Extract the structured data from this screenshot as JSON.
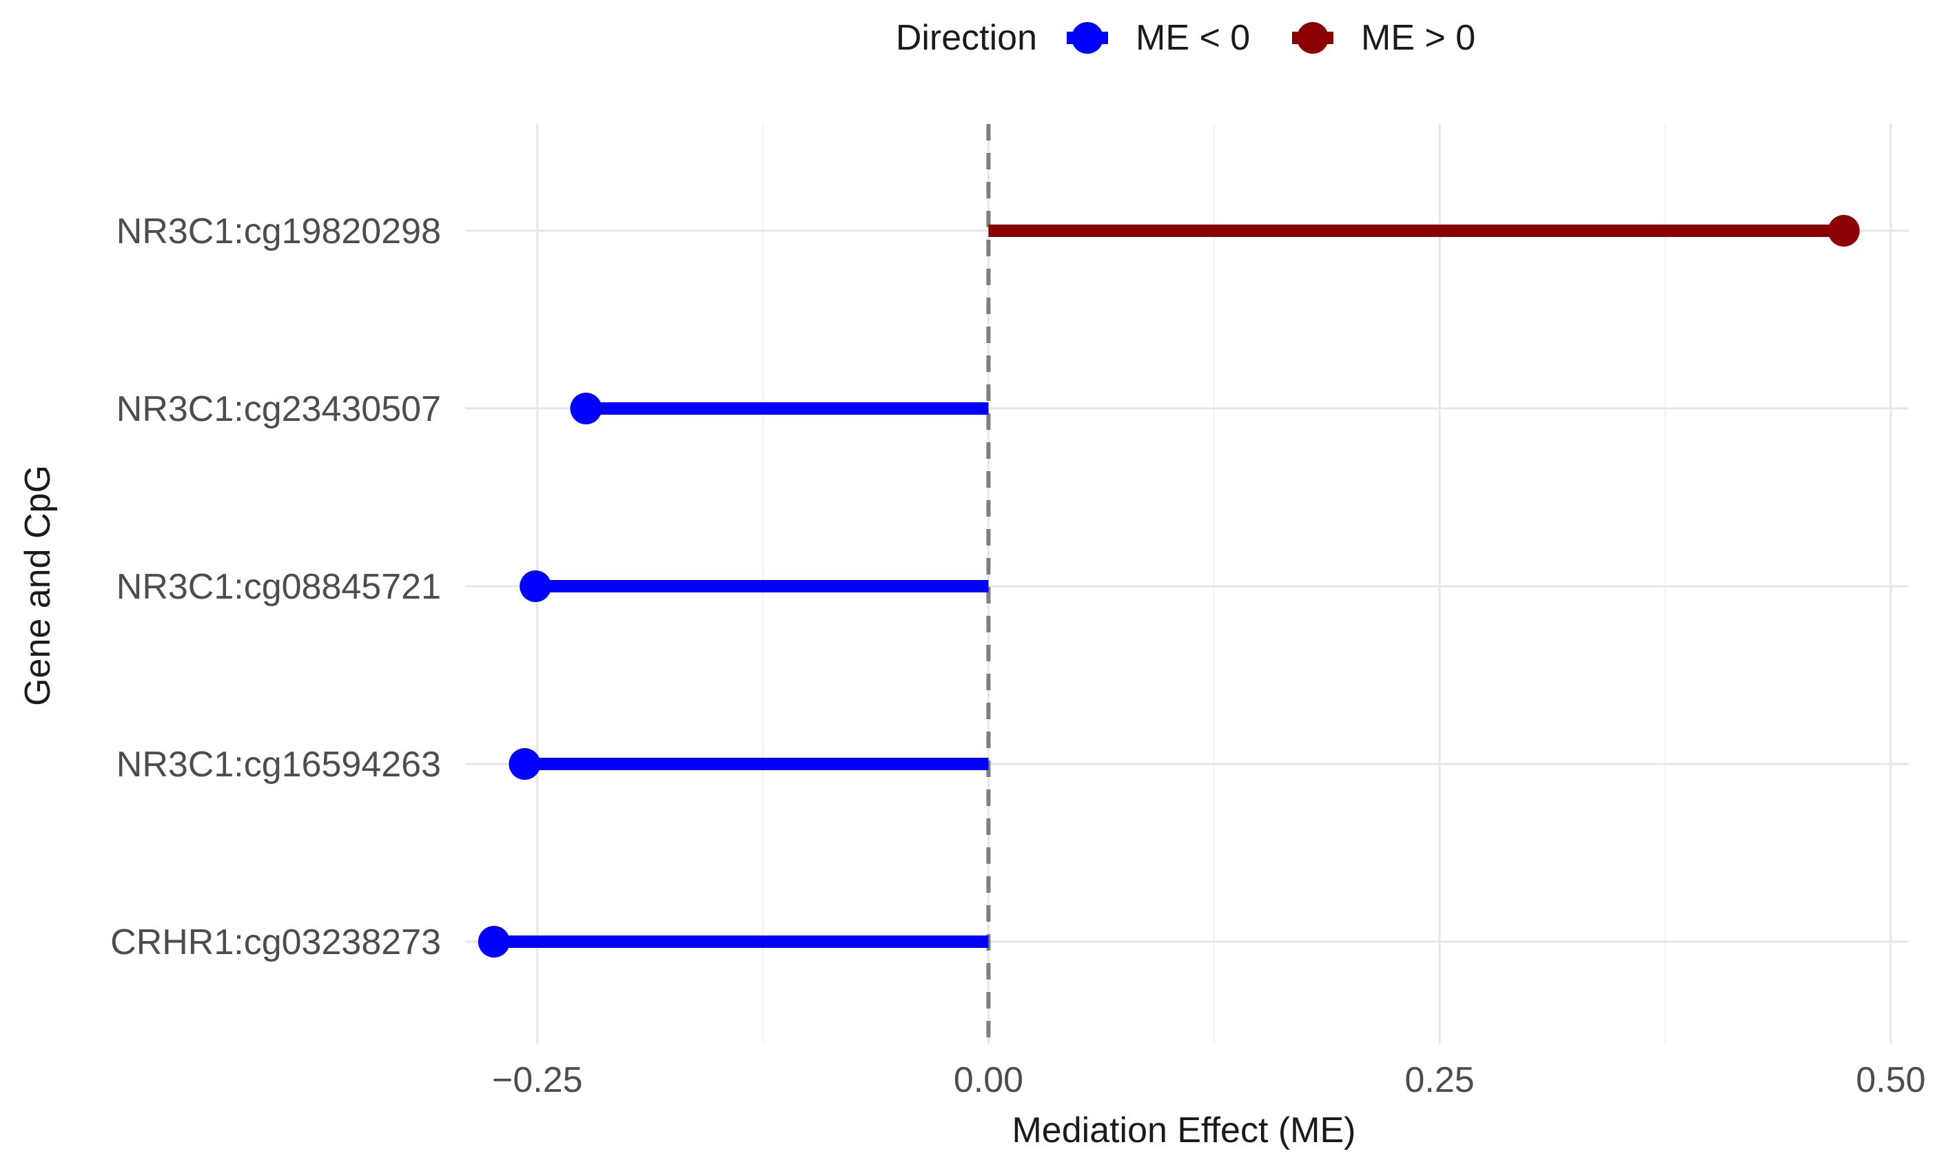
{
  "chart_data": {
    "type": "lollipop",
    "title": "",
    "xlabel": "Mediation Effect (ME)",
    "ylabel": "Gene and CpG",
    "xlim": [
      -0.29,
      0.51
    ],
    "x_ticks": [
      -0.25,
      0.0,
      0.25,
      0.5
    ],
    "x_tick_labels": [
      "−0.25",
      "0.00",
      "0.25",
      "0.50"
    ],
    "x_minor_ticks": [
      -0.125,
      0.125,
      0.375
    ],
    "reference_line": {
      "x": 0,
      "style": "dashed",
      "color": "#7f7f7f"
    },
    "grid": true,
    "legend": {
      "title": "Direction",
      "position": "top",
      "entries": [
        {
          "label": "ME < 0",
          "color": "#0000ff"
        },
        {
          "label": "ME > 0",
          "color": "#8b0000"
        }
      ]
    },
    "categories": [
      "NR3C1:cg19820298",
      "NR3C1:cg23430507",
      "NR3C1:cg08845721",
      "NR3C1:cg16594263",
      "CRHR1:cg03238273"
    ],
    "values": [
      0.474,
      -0.223,
      -0.251,
      -0.257,
      -0.274
    ],
    "direction": [
      "ME > 0",
      "ME < 0",
      "ME < 0",
      "ME < 0",
      "ME < 0"
    ]
  }
}
